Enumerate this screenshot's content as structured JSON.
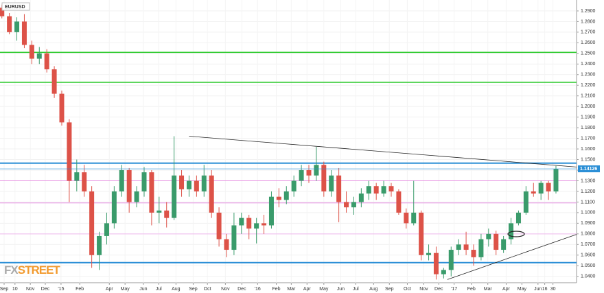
{
  "chart_data": {
    "type": "candlestick",
    "title": "EURUSD",
    "logo": [
      "FX",
      "STREET"
    ],
    "up_color": "#3a9b6b",
    "down_color": "#dd5248",
    "grid": true,
    "xlim": [
      -0.5,
      153.5
    ],
    "ylim": [
      1.034,
      1.3003
    ],
    "yticks": [
      {
        "value": 1.29,
        "label": "1.2900"
      },
      {
        "value": 1.28,
        "label": "1.2800"
      },
      {
        "value": 1.27,
        "label": "1.2700"
      },
      {
        "value": 1.26,
        "label": "1.2600"
      },
      {
        "value": 1.25,
        "label": "1.2500"
      },
      {
        "value": 1.24,
        "label": "1.2400"
      },
      {
        "value": 1.23,
        "label": "1.2300"
      },
      {
        "value": 1.22,
        "label": "1.2200"
      },
      {
        "value": 1.21,
        "label": "1.2100"
      },
      {
        "value": 1.2,
        "label": "1.2000"
      },
      {
        "value": 1.19,
        "label": "1.1900"
      },
      {
        "value": 1.18,
        "label": "1.1800"
      },
      {
        "value": 1.17,
        "label": "1.1700"
      },
      {
        "value": 1.16,
        "label": "1.1600"
      },
      {
        "value": 1.15,
        "label": "1.1500"
      },
      {
        "value": 1.14,
        "label": "1.1400"
      },
      {
        "value": 1.13,
        "label": "1.1300"
      },
      {
        "value": 1.12,
        "label": "1.1200"
      },
      {
        "value": 1.11,
        "label": "1.1100"
      },
      {
        "value": 1.1,
        "label": "1.1000"
      },
      {
        "value": 1.09,
        "label": "1.0900"
      },
      {
        "value": 1.08,
        "label": "1.0800"
      },
      {
        "value": 1.07,
        "label": "1.0700"
      },
      {
        "value": 1.06,
        "label": "1.0600"
      },
      {
        "value": 1.05,
        "label": "1.0500"
      },
      {
        "value": 1.04,
        "label": "1.0400"
      }
    ],
    "xticks": [
      {
        "value": 0.6,
        "label": "Sep"
      },
      {
        "value": 3.5,
        "label": "10"
      },
      {
        "value": 7.6,
        "label": "Nov"
      },
      {
        "value": 11.6,
        "label": "Dec"
      },
      {
        "value": 15.8,
        "label": "'15"
      },
      {
        "value": 20.8,
        "label": "Feb"
      },
      {
        "value": 28.7,
        "label": "Apr"
      },
      {
        "value": 32.9,
        "label": "May"
      },
      {
        "value": 37.8,
        "label": "Jun"
      },
      {
        "value": 41.9,
        "label": "Jul"
      },
      {
        "value": 46.5,
        "label": "Aug"
      },
      {
        "value": 51.1,
        "label": "Sep"
      },
      {
        "value": 54.9,
        "label": "Oct"
      },
      {
        "value": 59.7,
        "label": "Nov"
      },
      {
        "value": 64.1,
        "label": "Dec"
      },
      {
        "value": 68.3,
        "label": "'16"
      },
      {
        "value": 73.3,
        "label": "Feb"
      },
      {
        "value": 77.3,
        "label": "Mar"
      },
      {
        "value": 81.5,
        "label": "Apr"
      },
      {
        "value": 86.0,
        "label": "May"
      },
      {
        "value": 90.5,
        "label": "Jun"
      },
      {
        "value": 94.5,
        "label": "Jul"
      },
      {
        "value": 99.3,
        "label": "Aug"
      },
      {
        "value": 103.5,
        "label": "Sep"
      },
      {
        "value": 108.3,
        "label": "Oct"
      },
      {
        "value": 112.7,
        "label": "Nov"
      },
      {
        "value": 116.7,
        "label": "Dec"
      },
      {
        "value": 120.8,
        "label": "'17"
      },
      {
        "value": 125.4,
        "label": "Feb"
      },
      {
        "value": 129.8,
        "label": "Mar"
      },
      {
        "value": 134.7,
        "label": "Apr"
      },
      {
        "value": 138.9,
        "label": "May"
      },
      {
        "value": 143.2,
        "label": "Jun"
      },
      {
        "value": 145.0,
        "label": "16"
      },
      {
        "value": 147.2,
        "label": "30"
      }
    ],
    "x": [
      0,
      2,
      4,
      6,
      8,
      10,
      12,
      14,
      16,
      18,
      20,
      22,
      24,
      26,
      28,
      30,
      32,
      34,
      36,
      38,
      40,
      42,
      44,
      46,
      48,
      50,
      52,
      54,
      56,
      58,
      60,
      62,
      64,
      66,
      68,
      70,
      72,
      74,
      76,
      78,
      80,
      82,
      84,
      86,
      88,
      90,
      92,
      94,
      96,
      98,
      100,
      102,
      104,
      106,
      108,
      110,
      112,
      114,
      116,
      118,
      120,
      122,
      124,
      126,
      128,
      130,
      132,
      134,
      136,
      138,
      140,
      142,
      144,
      146,
      148
    ],
    "open": [
      1.293,
      1.285,
      1.27,
      1.28,
      1.258,
      1.245,
      1.25,
      1.235,
      1.212,
      1.185,
      1.13,
      1.138,
      1.12,
      1.06,
      1.078,
      1.09,
      1.12,
      1.14,
      1.11,
      1.12,
      1.138,
      1.1,
      1.102,
      1.095,
      1.135,
      1.122,
      1.13,
      1.12,
      1.135,
      1.1,
      1.075,
      1.065,
      1.088,
      1.095,
      1.085,
      1.09,
      1.088,
      1.115,
      1.112,
      1.12,
      1.13,
      1.14,
      1.135,
      1.145,
      1.12,
      1.135,
      1.11,
      1.105,
      1.11,
      1.118,
      1.125,
      1.118,
      1.125,
      1.12,
      1.1,
      1.09,
      1.1,
      1.06,
      1.062,
      1.042,
      1.046,
      1.065,
      1.07,
      1.065,
      1.058,
      1.075,
      1.08,
      1.065,
      1.075,
      1.09,
      1.1,
      1.12,
      1.118,
      1.128,
      1.12
    ],
    "high": [
      1.296,
      1.288,
      1.284,
      1.287,
      1.262,
      1.256,
      1.254,
      1.238,
      1.215,
      1.188,
      1.15,
      1.145,
      1.125,
      1.082,
      1.1,
      1.125,
      1.145,
      1.142,
      1.125,
      1.143,
      1.14,
      1.115,
      1.11,
      1.172,
      1.14,
      1.135,
      1.135,
      1.145,
      1.14,
      1.105,
      1.08,
      1.1,
      1.1,
      1.098,
      1.095,
      1.098,
      1.12,
      1.123,
      1.125,
      1.135,
      1.145,
      1.145,
      1.162,
      1.148,
      1.14,
      1.142,
      1.12,
      1.115,
      1.123,
      1.13,
      1.128,
      1.13,
      1.128,
      1.122,
      1.104,
      1.13,
      1.102,
      1.07,
      1.068,
      1.048,
      1.068,
      1.075,
      1.082,
      1.07,
      1.08,
      1.085,
      1.083,
      1.078,
      1.095,
      1.102,
      1.125,
      1.128,
      1.13,
      1.13,
      1.144
    ],
    "low": [
      1.283,
      1.268,
      1.262,
      1.255,
      1.24,
      1.24,
      1.232,
      1.208,
      1.182,
      1.11,
      1.12,
      1.115,
      1.048,
      1.046,
      1.07,
      1.085,
      1.115,
      1.1,
      1.105,
      1.115,
      1.088,
      1.09,
      1.086,
      1.093,
      1.115,
      1.115,
      1.115,
      1.115,
      1.095,
      1.068,
      1.058,
      1.06,
      1.08,
      1.075,
      1.071,
      1.08,
      1.085,
      1.105,
      1.108,
      1.115,
      1.125,
      1.128,
      1.13,
      1.115,
      1.115,
      1.091,
      1.1,
      1.098,
      1.105,
      1.112,
      1.112,
      1.115,
      1.115,
      1.098,
      1.085,
      1.088,
      1.055,
      1.055,
      1.037,
      1.038,
      1.04,
      1.06,
      1.06,
      1.05,
      1.055,
      1.068,
      1.06,
      1.062,
      1.07,
      1.088,
      1.098,
      1.115,
      1.112,
      1.112,
      1.118
    ],
    "close": [
      1.285,
      1.27,
      1.28,
      1.258,
      1.245,
      1.25,
      1.235,
      1.212,
      1.185,
      1.13,
      1.138,
      1.12,
      1.06,
      1.078,
      1.09,
      1.12,
      1.14,
      1.11,
      1.12,
      1.138,
      1.1,
      1.102,
      1.095,
      1.135,
      1.122,
      1.13,
      1.12,
      1.135,
      1.1,
      1.075,
      1.065,
      1.088,
      1.095,
      1.085,
      1.09,
      1.088,
      1.115,
      1.112,
      1.12,
      1.13,
      1.14,
      1.135,
      1.145,
      1.12,
      1.135,
      1.11,
      1.105,
      1.11,
      1.118,
      1.125,
      1.118,
      1.125,
      1.12,
      1.1,
      1.09,
      1.1,
      1.06,
      1.062,
      1.042,
      1.046,
      1.065,
      1.07,
      1.065,
      1.058,
      1.075,
      1.08,
      1.065,
      1.075,
      1.09,
      1.1,
      1.12,
      1.118,
      1.128,
      1.12,
      1.14126
    ],
    "levels": [
      {
        "value": 1.251,
        "color": "#33cc33"
      },
      {
        "value": 1.2228,
        "color": "#33cc33"
      },
      {
        "value": 1.1466,
        "color": "#2b8fd6"
      },
      {
        "value": 1.0529,
        "color": "#2b8fd6"
      },
      {
        "value": 1.13,
        "color": "#e58ae0"
      },
      {
        "value": 1.1091,
        "color": "#e58ae0"
      },
      {
        "value": 1.08,
        "color": "#f0b8ee"
      }
    ],
    "trendlines": [
      {
        "x": [
          50,
          153.5
        ],
        "y": [
          1.172,
          1.143
        ],
        "color": "#222222"
      },
      {
        "x": [
          119,
          153.5
        ],
        "y": [
          1.037,
          1.0795
        ],
        "color": "#222222"
      }
    ],
    "last_price": {
      "value": 1.14126,
      "label": "1.14126",
      "color": "#2b8fd6"
    }
  }
}
